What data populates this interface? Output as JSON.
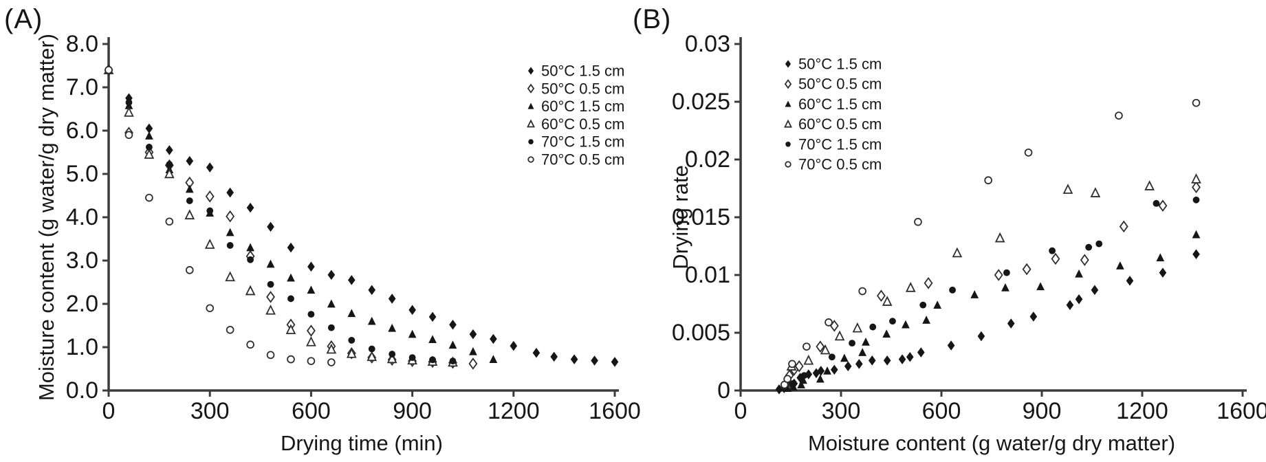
{
  "figure": {
    "background": "#ffffff",
    "ink_color": "#161616",
    "axis_color": "#3c3c3c"
  },
  "chart_data": [
    {
      "type": "scatter",
      "panel_label": "(A)",
      "xlabel": "Drying time (min)",
      "ylabel": "Moisture content (g water/g dry matter)",
      "x_ticks": [
        0,
        300,
        600,
        900,
        1200,
        1600
      ],
      "x_tick_labels": [
        "0",
        "300",
        "600",
        "900",
        "1200",
        "1600"
      ],
      "x_axis_note": "ticks equally spaced; last interval spans 400 units",
      "y_ticks": [
        0,
        1,
        2,
        3,
        4,
        5,
        6,
        7,
        8
      ],
      "y_tick_labels": [
        "0.0",
        "1.0",
        "2.0",
        "3.0",
        "4.0",
        "5.0",
        "6.0",
        "7.0",
        "8.0"
      ],
      "ylim": [
        0,
        8
      ],
      "grid": false,
      "legend_position": "upper-right-inside",
      "series": [
        {
          "name": "50°C 1.5 cm",
          "marker": "diamond",
          "fill": "filled",
          "points": [
            [
              0,
              7.42
            ],
            [
              60,
              6.75
            ],
            [
              120,
              6.05
            ],
            [
              180,
              5.55
            ],
            [
              240,
              5.3
            ],
            [
              300,
              5.15
            ],
            [
              360,
              4.57
            ],
            [
              420,
              4.22
            ],
            [
              480,
              3.78
            ],
            [
              540,
              3.3
            ],
            [
              600,
              2.86
            ],
            [
              660,
              2.67
            ],
            [
              720,
              2.55
            ],
            [
              780,
              2.32
            ],
            [
              840,
              2.12
            ],
            [
              900,
              1.86
            ],
            [
              960,
              1.7
            ],
            [
              1020,
              1.52
            ],
            [
              1080,
              1.3
            ],
            [
              1140,
              1.19
            ],
            [
              1200,
              1.03
            ],
            [
              1290,
              0.87
            ],
            [
              1360,
              0.78
            ],
            [
              1440,
              0.72
            ],
            [
              1520,
              0.69
            ],
            [
              1600,
              0.66
            ]
          ]
        },
        {
          "name": "50°C 0.5 cm",
          "marker": "diamond",
          "fill": "open",
          "points": [
            [
              0,
              7.4
            ],
            [
              60,
              5.95
            ],
            [
              120,
              5.5
            ],
            [
              180,
              5.2
            ],
            [
              240,
              4.8
            ],
            [
              300,
              4.48
            ],
            [
              360,
              4.02
            ],
            [
              420,
              3.1
            ],
            [
              480,
              2.16
            ],
            [
              540,
              1.52
            ],
            [
              600,
              1.38
            ],
            [
              660,
              1.02
            ],
            [
              720,
              0.86
            ],
            [
              780,
              0.76
            ],
            [
              840,
              0.71
            ],
            [
              900,
              0.68
            ],
            [
              960,
              0.66
            ],
            [
              1020,
              0.64
            ],
            [
              1080,
              0.62
            ]
          ]
        },
        {
          "name": "60°C 1.5 cm",
          "marker": "triangle",
          "fill": "filled",
          "points": [
            [
              0,
              7.4
            ],
            [
              60,
              6.58
            ],
            [
              120,
              5.88
            ],
            [
              180,
              5.1
            ],
            [
              240,
              4.65
            ],
            [
              300,
              4.1
            ],
            [
              360,
              3.65
            ],
            [
              420,
              3.3
            ],
            [
              480,
              2.92
            ],
            [
              540,
              2.6
            ],
            [
              600,
              2.32
            ],
            [
              660,
              2.0
            ],
            [
              720,
              1.78
            ],
            [
              780,
              1.6
            ],
            [
              840,
              1.44
            ],
            [
              900,
              1.3
            ],
            [
              960,
              1.18
            ],
            [
              1020,
              1.05
            ],
            [
              1080,
              0.9
            ],
            [
              1140,
              0.72
            ]
          ]
        },
        {
          "name": "60°C 0.5 cm",
          "marker": "triangle",
          "fill": "open",
          "points": [
            [
              0,
              7.4
            ],
            [
              60,
              6.42
            ],
            [
              120,
              5.45
            ],
            [
              180,
              5.0
            ],
            [
              240,
              4.05
            ],
            [
              300,
              3.37
            ],
            [
              360,
              2.62
            ],
            [
              420,
              2.3
            ],
            [
              480,
              1.85
            ],
            [
              540,
              1.4
            ],
            [
              600,
              1.12
            ],
            [
              660,
              0.95
            ],
            [
              720,
              0.85
            ],
            [
              780,
              0.78
            ],
            [
              840,
              0.73
            ],
            [
              900,
              0.7
            ],
            [
              960,
              0.67
            ],
            [
              1020,
              0.65
            ]
          ]
        },
        {
          "name": "70°C 1.5 cm",
          "marker": "circle",
          "fill": "filled",
          "points": [
            [
              0,
              7.4
            ],
            [
              60,
              6.65
            ],
            [
              120,
              5.62
            ],
            [
              180,
              5.22
            ],
            [
              240,
              4.38
            ],
            [
              300,
              4.15
            ],
            [
              360,
              3.35
            ],
            [
              420,
              3.02
            ],
            [
              480,
              2.45
            ],
            [
              540,
              2.12
            ],
            [
              600,
              1.76
            ],
            [
              660,
              1.45
            ],
            [
              720,
              1.16
            ],
            [
              780,
              0.96
            ],
            [
              840,
              0.84
            ],
            [
              900,
              0.76
            ],
            [
              960,
              0.71
            ],
            [
              1020,
              0.68
            ]
          ]
        },
        {
          "name": "70°C 0.5 cm",
          "marker": "circle",
          "fill": "open",
          "points": [
            [
              0,
              7.4
            ],
            [
              60,
              5.9
            ],
            [
              120,
              4.45
            ],
            [
              180,
              3.9
            ],
            [
              240,
              2.78
            ],
            [
              300,
              1.9
            ],
            [
              360,
              1.4
            ],
            [
              420,
              1.06
            ],
            [
              480,
              0.82
            ],
            [
              540,
              0.72
            ],
            [
              600,
              0.68
            ],
            [
              660,
              0.65
            ]
          ]
        }
      ]
    },
    {
      "type": "scatter",
      "panel_label": "(B)",
      "xlabel": "Moisture content (g water/g dry matter)",
      "ylabel": "Drying rate",
      "x_ticks": [
        0,
        300,
        600,
        900,
        1200,
        1600
      ],
      "x_tick_labels": [
        "0",
        "300",
        "600",
        "900",
        "1200",
        "1600"
      ],
      "x_axis_note": "ticks equally spaced; last interval spans 400 units",
      "y_ticks": [
        0,
        0.005,
        0.01,
        0.015,
        0.02,
        0.025,
        0.03
      ],
      "y_tick_labels": [
        "0",
        "0.005",
        "0.01",
        "0.015",
        "0.02",
        "0.025",
        "0.03"
      ],
      "ylim": [
        0,
        0.03
      ],
      "grid": false,
      "legend_position": "upper-left-inside",
      "series": [
        {
          "name": "50°C 1.5 cm",
          "marker": "diamond",
          "fill": "filled",
          "points": [
            [
              115,
              0.0001
            ],
            [
              130,
              0.0002
            ],
            [
              145,
              0.0004
            ],
            [
              160,
              0.0006
            ],
            [
              178,
              0.0011
            ],
            [
              203,
              0.0014
            ],
            [
              226,
              0.0015
            ],
            [
              240,
              0.0017
            ],
            [
              280,
              0.0018
            ],
            [
              321,
              0.0021
            ],
            [
              354,
              0.0023
            ],
            [
              393,
              0.0026
            ],
            [
              438,
              0.0026
            ],
            [
              483,
              0.0027
            ],
            [
              506,
              0.0029
            ],
            [
              539,
              0.0033
            ],
            [
              629,
              0.0039
            ],
            [
              719,
              0.0047
            ],
            [
              808,
              0.0058
            ],
            [
              875,
              0.0064
            ],
            [
              984,
              0.0074
            ],
            [
              1011,
              0.0079
            ],
            [
              1058,
              0.0087
            ],
            [
              1163,
              0.0095
            ],
            [
              1282,
              0.0102
            ],
            [
              1415,
              0.0118
            ]
          ]
        },
        {
          "name": "50°C 0.5 cm",
          "marker": "diamond",
          "fill": "open",
          "points": [
            [
              133,
              0.0004
            ],
            [
              146,
              0.0013
            ],
            [
              160,
              0.0018
            ],
            [
              175,
              0.0021
            ],
            [
              238,
              0.0038
            ],
            [
              280,
              0.0056
            ],
            [
              420,
              0.0082
            ],
            [
              561,
              0.0093
            ],
            [
              771,
              0.01
            ],
            [
              855,
              0.0105
            ],
            [
              941,
              0.0114
            ],
            [
              1028,
              0.0113
            ],
            [
              1145,
              0.0142
            ],
            [
              1282,
              0.016
            ],
            [
              1415,
              0.0176
            ]
          ]
        },
        {
          "name": "60°C 1.5 cm",
          "marker": "triangle",
          "fill": "filled",
          "points": [
            [
              140,
              0.0002
            ],
            [
              158,
              0.0003
            ],
            [
              181,
              0.0005
            ],
            [
              187,
              0.0009
            ],
            [
              238,
              0.001
            ],
            [
              259,
              0.0017
            ],
            [
              310,
              0.0028
            ],
            [
              364,
              0.0033
            ],
            [
              374,
              0.0042
            ],
            [
              436,
              0.0049
            ],
            [
              493,
              0.0057
            ],
            [
              555,
              0.0061
            ],
            [
              588,
              0.0074
            ],
            [
              699,
              0.0083
            ],
            [
              791,
              0.0089
            ],
            [
              896,
              0.009
            ],
            [
              1011,
              0.0101
            ],
            [
              1134,
              0.0108
            ],
            [
              1272,
              0.0115
            ],
            [
              1415,
              0.0135
            ]
          ]
        },
        {
          "name": "60°C 0.5 cm",
          "marker": "triangle",
          "fill": "open",
          "points": [
            [
              138,
              0.0005
            ],
            [
              152,
              0.0021
            ],
            [
              203,
              0.0026
            ],
            [
              253,
              0.0035
            ],
            [
              296,
              0.0047
            ],
            [
              349,
              0.0054
            ],
            [
              438,
              0.0077
            ],
            [
              508,
              0.0089
            ],
            [
              647,
              0.0119
            ],
            [
              775,
              0.0132
            ],
            [
              978,
              0.0174
            ],
            [
              1060,
              0.0171
            ],
            [
              1229,
              0.0177
            ],
            [
              1415,
              0.0183
            ]
          ]
        },
        {
          "name": "70°C 1.5 cm",
          "marker": "circle",
          "fill": "filled",
          "points": [
            [
              135,
              0.0003
            ],
            [
              156,
              0.0006
            ],
            [
              190,
              0.0013
            ],
            [
              273,
              0.0029
            ],
            [
              333,
              0.0041
            ],
            [
              395,
              0.0055
            ],
            [
              454,
              0.006
            ],
            [
              545,
              0.0074
            ],
            [
              633,
              0.0087
            ],
            [
              795,
              0.0102
            ],
            [
              931,
              0.0121
            ],
            [
              1040,
              0.0124
            ],
            [
              1071,
              0.0127
            ],
            [
              1256,
              0.0162
            ],
            [
              1415,
              0.0165
            ]
          ]
        },
        {
          "name": "70°C 0.5 cm",
          "marker": "circle",
          "fill": "open",
          "points": [
            [
              131,
              0.0005
            ],
            [
              140,
              0.001
            ],
            [
              154,
              0.0023
            ],
            [
              197,
              0.0038
            ],
            [
              263,
              0.0059
            ],
            [
              364,
              0.0086
            ],
            [
              530,
              0.0146
            ],
            [
              740,
              0.0182
            ],
            [
              860,
              0.0206
            ],
            [
              1130,
              0.0238
            ],
            [
              1415,
              0.0249
            ]
          ]
        }
      ]
    }
  ]
}
